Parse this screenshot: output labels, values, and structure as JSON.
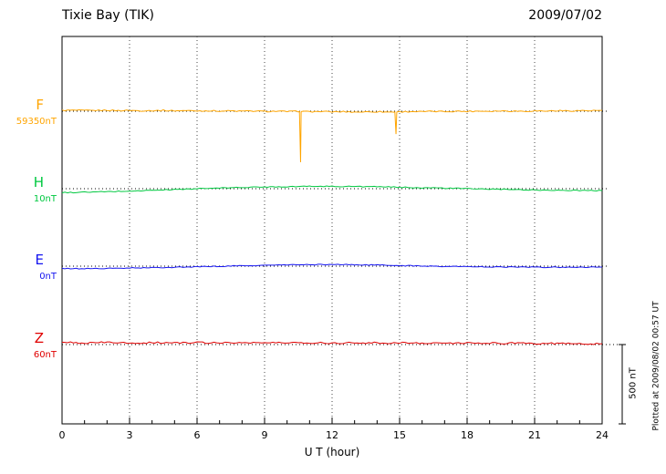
{
  "header": {
    "title": "Tixie Bay (TIK)",
    "date": "2009/07/02"
  },
  "x_axis": {
    "label": "U T (hour)",
    "ticks": [
      0,
      3,
      6,
      9,
      12,
      15,
      18,
      21,
      24
    ]
  },
  "scale_bar": {
    "label": "500 nT",
    "nT": 500
  },
  "footer_note": "Plotted at 2009/08/02 00:57 UT",
  "chart_data": {
    "type": "line",
    "title": "Tixie Bay (TIK) magnetogram",
    "date": "2009/07/02",
    "xlabel": "U T (hour)",
    "x_range": [
      0,
      24
    ],
    "x_step_hours": 0.5,
    "grid": "vertical dotted every 3 hours",
    "scale_bar_nT": 500,
    "series": [
      {
        "name": "F",
        "baseline_label": "59350nT",
        "color": "#FFA500",
        "noise_nT": 4,
        "values": [
          5,
          6,
          4,
          5,
          6,
          4,
          5,
          3,
          4,
          5,
          3,
          4,
          2,
          3,
          1,
          2,
          0,
          1,
          -1,
          0,
          -2,
          -1,
          -3,
          -2,
          -4,
          -3,
          -5,
          -4,
          -3,
          -5,
          -4,
          -2,
          -3,
          -1,
          -2,
          0,
          -1,
          1,
          0,
          2,
          1,
          0,
          2,
          1,
          3,
          2,
          4,
          3,
          5
        ],
        "spikes": [
          {
            "x": 10.6,
            "nT": -322
          },
          {
            "x": 14.84,
            "nT": -144
          }
        ]
      },
      {
        "name": "H",
        "baseline_label": "10nT",
        "color": "#00C840",
        "noise_nT": 3,
        "values": [
          -25,
          -24,
          -22,
          -21,
          -19,
          -17,
          -15,
          -13,
          -10,
          -8,
          -5,
          -3,
          0,
          2,
          4,
          6,
          8,
          9,
          11,
          12,
          13,
          14,
          15,
          15,
          15,
          14,
          14,
          13,
          12,
          11,
          9,
          8,
          6,
          5,
          3,
          2,
          0,
          -1,
          -3,
          -4,
          -6,
          -7,
          -8,
          -9,
          -10,
          -11,
          -11,
          -12,
          -12
        ],
        "spikes": []
      },
      {
        "name": "E",
        "baseline_label": "0nT",
        "color": "#1414F0",
        "noise_nT": 3,
        "values": [
          -16,
          -15,
          -16,
          -14,
          -15,
          -13,
          -12,
          -11,
          -10,
          -8,
          -7,
          -5,
          -4,
          -2,
          -1,
          1,
          2,
          4,
          5,
          7,
          8,
          9,
          10,
          10,
          11,
          10,
          9,
          8,
          7,
          5,
          4,
          2,
          1,
          0,
          -1,
          -2,
          -3,
          -4,
          -4,
          -5,
          -5,
          -6,
          -6,
          -7,
          -6,
          -7,
          -6,
          -6,
          -6
        ],
        "spikes": []
      },
      {
        "name": "Z",
        "baseline_label": "60nT",
        "color": "#E00000",
        "noise_nT": 5,
        "values": [
          10,
          13,
          9,
          12,
          14,
          10,
          12,
          9,
          13,
          11,
          12,
          10,
          13,
          11,
          14,
          10,
          12,
          13,
          10,
          12,
          11,
          13,
          10,
          12,
          9,
          11,
          12,
          10,
          11,
          9,
          12,
          10,
          9,
          11,
          8,
          10,
          9,
          8,
          10,
          7,
          9,
          8,
          7,
          8,
          6,
          7,
          6,
          5,
          5
        ],
        "spikes": []
      }
    ]
  }
}
